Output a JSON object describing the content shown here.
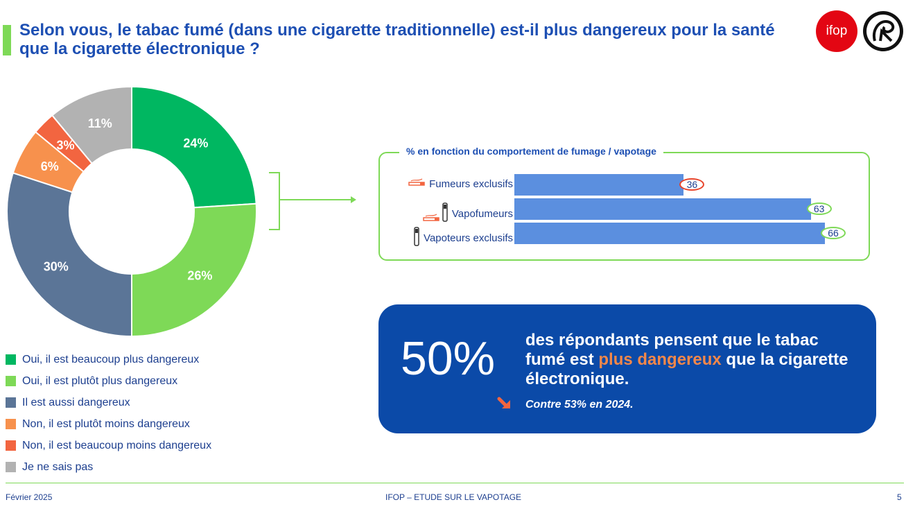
{
  "title": "Selon vous, le tabac fumé (dans une cigarette traditionnelle) est-il plus dangereux pour la santé que la cigarette électronique ?",
  "logos": {
    "ifop_text": "ifop",
    "seal_icon": "swirl-seal-logo-icon"
  },
  "colors": {
    "accent_green": "#7ed957",
    "title_blue": "#1d4fb3",
    "callout_blue": "#0b4aa8",
    "highlight_orange": "#f2874a",
    "bar_blue": "#5b8fdf"
  },
  "chart_data": [
    {
      "type": "pie",
      "donut": true,
      "categories": [
        "Oui, il est beaucoup plus dangereux",
        "Oui, il est plutôt plus dangereux",
        "Il est aussi dangereux",
        "Non, il est plutôt moins dangereux",
        "Non, il est beaucoup moins dangereux",
        "Je ne sais pas"
      ],
      "values": [
        24,
        26,
        30,
        6,
        3,
        11
      ],
      "labels": [
        "24%",
        "26%",
        "30%",
        "6%",
        "3%",
        "11%"
      ],
      "colors": [
        "#00b761",
        "#7ed957",
        "#5b7597",
        "#f7914d",
        "#f26540",
        "#b2b2b2"
      ],
      "legend_position": "bottom-left"
    },
    {
      "type": "bar",
      "orientation": "horizontal",
      "title": "% en fonction du comportement de fumage / vapotage",
      "categories": [
        "Fumeurs exclusifs",
        "Vapofumeurs",
        "Vapoteurs exclusifs"
      ],
      "values": [
        36,
        63,
        66
      ],
      "value_labels": [
        "36",
        "63",
        "66"
      ],
      "value_outline_colors": [
        "#e8452c",
        "#7ed957",
        "#7ed957"
      ],
      "icons": [
        "cigarette-icon",
        "cigarette-and-vape-icon",
        "vape-pen-icon"
      ],
      "xlim": [
        0,
        66
      ],
      "grid": false
    }
  ],
  "callout": {
    "big_number": "50%",
    "text_before": "des répondants pensent que le tabac fumé est ",
    "highlight": "plus dangereux",
    "text_after": " que la cigarette électronique.",
    "trend_text": "Contre 53% en 2024.",
    "trend_icon": "arrow-down-right-icon"
  },
  "footer": {
    "date": "Février 2025",
    "center": "IFOP – ETUDE SUR LE VAPOTAGE",
    "page": "5"
  }
}
